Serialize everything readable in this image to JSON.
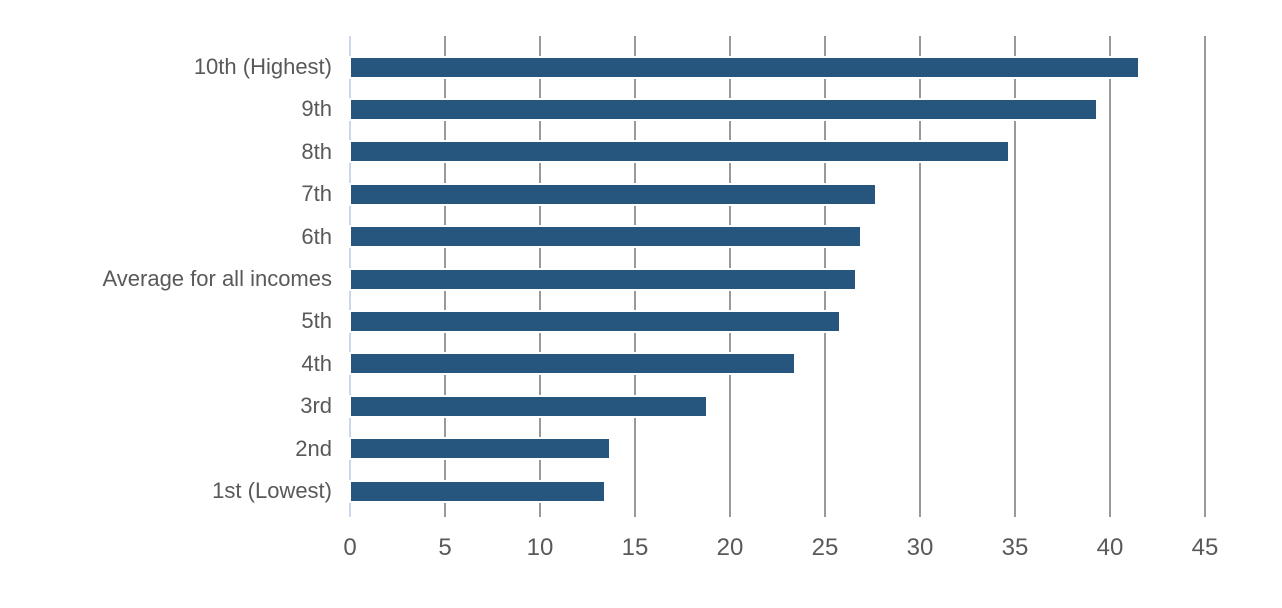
{
  "chart_data": {
    "type": "bar",
    "orientation": "horizontal",
    "title": "",
    "subtitle": "",
    "xlabel": "",
    "ylabel": "",
    "categories": [
      "10th (Highest)",
      "9th",
      "8th",
      "7th",
      "6th",
      "Average for all incomes",
      "5th",
      "4th",
      "3rd",
      "2nd",
      "1st (Lowest)"
    ],
    "values": [
      41.4,
      39.2,
      34.6,
      27.6,
      26.8,
      26.5,
      25.7,
      23.3,
      18.7,
      13.6,
      13.3
    ],
    "xlim": [
      0,
      45
    ],
    "x_ticks": [
      0,
      5,
      10,
      15,
      20,
      25,
      30,
      35,
      40,
      45
    ],
    "grid": "vertical-gridlines-at-each-x-tick",
    "legend": "none",
    "colors": {
      "bar": "#26567E",
      "gridline": "#999999",
      "zero_axis_line": "#CCD7EA",
      "label_text": "#595959",
      "background": "#FFFFFF"
    }
  }
}
